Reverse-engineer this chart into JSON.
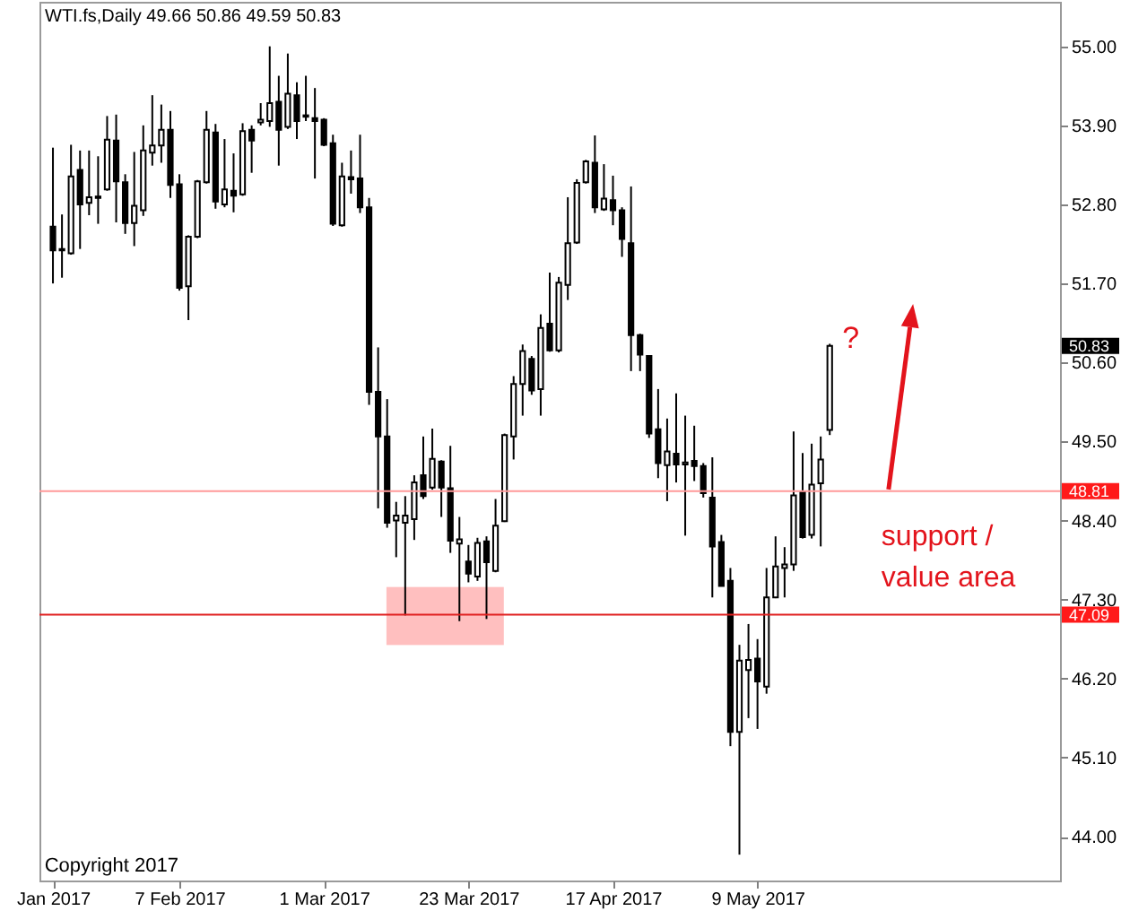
{
  "chart_data": {
    "type": "candlestick",
    "title": "WTI.fs,Daily 49.66 50.86 49.59 50.83",
    "categories": [
      "Jan 2017",
      null,
      null,
      null,
      null,
      null,
      null,
      null,
      null,
      null,
      null,
      null,
      null,
      null,
      "7 Feb 2017",
      null,
      null,
      null,
      null,
      null,
      null,
      null,
      null,
      null,
      null,
      null,
      null,
      null,
      null,
      null,
      "1 Mar 2017",
      null,
      null,
      null,
      null,
      null,
      null,
      null,
      null,
      null,
      null,
      null,
      null,
      null,
      null,
      null,
      "23 Mar 2017",
      null,
      null,
      null,
      null,
      null,
      null,
      null,
      null,
      null,
      null,
      null,
      null,
      null,
      null,
      null,
      "17 Apr 2017",
      null,
      null,
      null,
      null,
      null,
      null,
      null,
      null,
      null,
      null,
      null,
      null,
      null,
      null,
      null,
      "9 May 2017",
      null,
      null,
      null,
      null,
      null,
      null,
      null,
      null,
      null,
      null,
      null,
      null,
      null,
      null,
      null,
      null,
      null,
      null,
      null,
      null,
      null,
      null,
      null,
      null,
      null,
      null,
      null,
      null,
      null,
      null,
      null,
      null
    ],
    "ohlc": [
      [
        52.49,
        53.59,
        51.7,
        52.16
      ],
      [
        52.18,
        52.66,
        51.78,
        52.16
      ],
      [
        52.12,
        53.63,
        52.1,
        53.19
      ],
      [
        53.28,
        53.55,
        52.18,
        52.8
      ],
      [
        52.82,
        53.55,
        52.65,
        52.9
      ],
      [
        52.91,
        53.47,
        52.53,
        52.89
      ],
      [
        53.01,
        54.03,
        52.99,
        53.7
      ],
      [
        53.69,
        54.05,
        52.55,
        53.12
      ],
      [
        53.11,
        53.22,
        52.39,
        52.54
      ],
      [
        52.54,
        53.53,
        52.22,
        52.78
      ],
      [
        52.72,
        53.9,
        52.64,
        53.55
      ],
      [
        53.52,
        54.32,
        53.34,
        53.62
      ],
      [
        53.62,
        54.19,
        53.38,
        53.84
      ],
      [
        53.84,
        54.1,
        52.89,
        53.07
      ],
      [
        53.08,
        53.22,
        51.6,
        51.64
      ],
      [
        51.66,
        52.37,
        51.19,
        52.35
      ],
      [
        52.35,
        53.14,
        52.33,
        53.12
      ],
      [
        53.11,
        54.1,
        53.09,
        53.84
      ],
      [
        53.8,
        53.92,
        52.74,
        52.84
      ],
      [
        52.8,
        53.71,
        52.76,
        53.01
      ],
      [
        52.99,
        53.51,
        52.69,
        52.92
      ],
      [
        52.94,
        53.93,
        52.92,
        53.82
      ],
      [
        53.84,
        53.9,
        53.24,
        53.69
      ],
      [
        53.94,
        54.21,
        53.9,
        53.98
      ],
      [
        53.96,
        55.0,
        53.88,
        54.21
      ],
      [
        54.23,
        54.59,
        53.34,
        53.84
      ],
      [
        53.88,
        54.9,
        53.85,
        54.34
      ],
      [
        54.32,
        54.5,
        53.71,
        53.96
      ],
      [
        54.04,
        54.59,
        53.96,
        54.02
      ],
      [
        54.0,
        54.42,
        53.16,
        53.96
      ],
      [
        53.98,
        54.0,
        53.61,
        53.63
      ],
      [
        53.65,
        53.77,
        52.5,
        52.53
      ],
      [
        52.51,
        53.38,
        52.49,
        53.19
      ],
      [
        53.18,
        53.55,
        52.95,
        53.15
      ],
      [
        53.16,
        53.77,
        52.68,
        52.76
      ],
      [
        52.76,
        52.89,
        50.01,
        50.19
      ],
      [
        50.19,
        50.81,
        48.57,
        49.57
      ],
      [
        49.57,
        50.09,
        48.3,
        48.37
      ],
      [
        48.4,
        48.66,
        47.89,
        48.47
      ],
      [
        48.37,
        48.74,
        47.08,
        48.47
      ],
      [
        48.42,
        49.03,
        48.13,
        48.93
      ],
      [
        49.03,
        49.57,
        48.7,
        48.74
      ],
      [
        48.86,
        49.68,
        48.83,
        49.26
      ],
      [
        49.22,
        49.24,
        48.45,
        48.86
      ],
      [
        48.85,
        49.44,
        47.95,
        48.12
      ],
      [
        48.08,
        48.45,
        47.0,
        48.14
      ],
      [
        47.83,
        48.06,
        47.54,
        47.66
      ],
      [
        47.62,
        48.16,
        47.56,
        48.09
      ],
      [
        48.11,
        48.18,
        47.03,
        47.82
      ],
      [
        47.7,
        48.7,
        47.68,
        48.33
      ],
      [
        48.39,
        49.61,
        48.38,
        49.59
      ],
      [
        49.57,
        50.41,
        49.25,
        50.3
      ],
      [
        50.3,
        50.85,
        49.86,
        50.76
      ],
      [
        50.65,
        50.69,
        50.15,
        50.21
      ],
      [
        50.23,
        51.27,
        49.86,
        51.08
      ],
      [
        51.14,
        51.85,
        50.75,
        50.77
      ],
      [
        50.77,
        51.79,
        50.74,
        51.71
      ],
      [
        51.68,
        52.9,
        51.47,
        52.26
      ],
      [
        52.27,
        53.15,
        52.25,
        53.1
      ],
      [
        53.11,
        53.42,
        53.09,
        53.4
      ],
      [
        53.38,
        53.76,
        52.68,
        52.76
      ],
      [
        52.73,
        53.36,
        52.71,
        52.88
      ],
      [
        52.86,
        53.2,
        52.51,
        52.72
      ],
      [
        52.72,
        52.76,
        52.07,
        52.32
      ],
      [
        52.26,
        53.05,
        50.48,
        50.98
      ],
      [
        50.98,
        51.0,
        50.48,
        50.71
      ],
      [
        50.69,
        50.7,
        49.55,
        49.61
      ],
      [
        49.67,
        50.23,
        48.99,
        49.2
      ],
      [
        49.17,
        49.82,
        48.67,
        49.36
      ],
      [
        49.33,
        50.17,
        48.93,
        49.18
      ],
      [
        49.18,
        49.86,
        48.19,
        49.21
      ],
      [
        49.23,
        49.72,
        48.95,
        49.16
      ],
      [
        49.16,
        49.2,
        48.72,
        48.78
      ],
      [
        48.72,
        49.28,
        47.33,
        48.04
      ],
      [
        48.1,
        48.2,
        47.49,
        47.49
      ],
      [
        47.56,
        47.74,
        45.26,
        45.46
      ],
      [
        45.46,
        46.67,
        43.75,
        46.45
      ],
      [
        46.32,
        46.96,
        45.65,
        46.46
      ],
      [
        46.48,
        46.75,
        45.5,
        46.16
      ],
      [
        46.09,
        47.74,
        45.99,
        47.33
      ],
      [
        47.33,
        48.18,
        47.32,
        47.76
      ],
      [
        47.74,
        48.03,
        47.33,
        47.79
      ],
      [
        47.79,
        49.64,
        47.7,
        48.75
      ],
      [
        48.8,
        49.34,
        48.15,
        48.17
      ],
      [
        48.2,
        49.47,
        48.15,
        48.9
      ],
      [
        48.92,
        49.57,
        48.04,
        49.25
      ],
      [
        49.66,
        50.86,
        49.59,
        50.83
      ],
      null,
      null,
      null,
      null,
      null,
      null,
      null,
      null,
      null,
      null,
      null,
      null,
      null,
      null,
      null,
      null,
      null,
      null,
      null,
      null,
      null,
      null,
      null,
      null
    ],
    "colors": [
      "#000000",
      "#000000",
      "#ffffff",
      "#000000",
      "#ffffff",
      "#000000",
      "#ffffff",
      "#000000",
      "#000000",
      "#ffffff",
      "#ffffff",
      "#ffffff",
      "#ffffff",
      "#000000",
      "#000000",
      "#ffffff",
      "#ffffff",
      "#ffffff",
      "#000000",
      "#ffffff",
      "#000000",
      "#ffffff",
      "#000000",
      "#ffffff",
      "#ffffff",
      "#000000",
      "#ffffff",
      "#000000",
      "#000000",
      "#000000",
      "#000000",
      "#000000",
      "#ffffff",
      "#000000",
      "#000000",
      "#000000",
      "#000000",
      "#000000",
      "#ffffff",
      "#ffffff",
      "#ffffff",
      "#000000",
      "#ffffff",
      "#000000",
      "#000000",
      "#ffffff",
      "#000000",
      "#ffffff",
      "#000000",
      "#ffffff",
      "#ffffff",
      "#ffffff",
      "#ffffff",
      "#000000",
      "#ffffff",
      "#000000",
      "#ffffff",
      "#ffffff",
      "#ffffff",
      "#ffffff",
      "#000000",
      "#ffffff",
      "#000000",
      "#000000",
      "#000000",
      "#000000",
      "#000000",
      "#000000",
      "#ffffff",
      "#000000",
      "#ffffff",
      "#000000",
      "#000000",
      "#000000",
      "#000000",
      "#000000",
      "#ffffff",
      "#ffffff",
      "#000000",
      "#ffffff",
      "#ffffff",
      "#ffffff",
      "#ffffff",
      "#000000",
      "#ffffff",
      "#ffffff",
      "#ffffff",
      null,
      null,
      null,
      null,
      null,
      null,
      null,
      null,
      null,
      null,
      null,
      null,
      null,
      null,
      null,
      null,
      null,
      null,
      null,
      null,
      null,
      null,
      null,
      null
    ],
    "ylim": [
      43.39,
      55.62
    ],
    "yticks": [
      {
        "value": 44,
        "label": "44.00"
      },
      {
        "value": 45.1,
        "label": "45.10"
      },
      {
        "value": 46.2,
        "label": "46.20"
      },
      {
        "value": 47.3,
        "label": "47.30"
      },
      {
        "value": 48.4,
        "label": "48.40"
      },
      {
        "value": 49.5,
        "label": "49.50"
      },
      {
        "value": 50.6,
        "label": "50.60"
      },
      {
        "value": 51.7,
        "label": "51.70"
      },
      {
        "value": 52.8,
        "label": "52.80"
      },
      {
        "value": 53.9,
        "label": "53.90"
      },
      {
        "value": 55,
        "label": "55.00"
      }
    ],
    "ref_lines": [
      {
        "axis": "y",
        "value": 48.81,
        "label": "48.81",
        "color": "#ff9a9a"
      },
      {
        "axis": "y",
        "value": 47.09,
        "label": "47.09",
        "color": "#e02020"
      }
    ],
    "annotations": [
      "?",
      "support / value area",
      "Copyright 2017",
      "50.83"
    ]
  }
}
